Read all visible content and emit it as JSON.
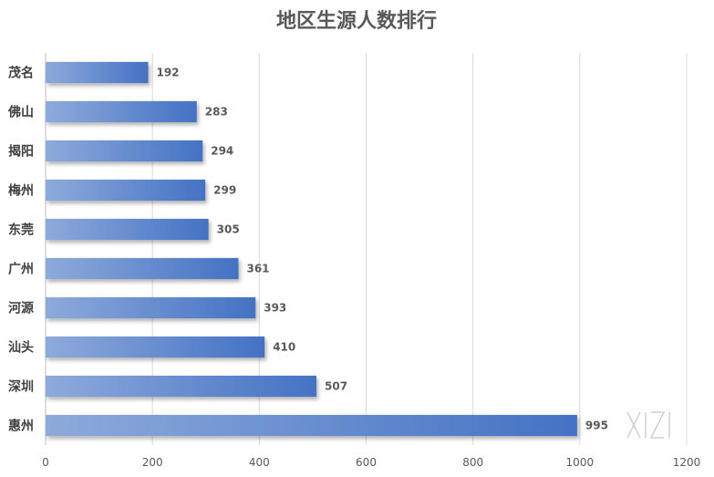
{
  "chart_data": {
    "type": "bar",
    "orientation": "horizontal",
    "title": "地区生源人数排行",
    "categories": [
      "茂名",
      "佛山",
      "揭阳",
      "梅州",
      "东莞",
      "广州",
      "河源",
      "汕头",
      "深圳",
      "惠州"
    ],
    "values": [
      192,
      283,
      294,
      299,
      305,
      361,
      393,
      410,
      507,
      995
    ],
    "data_labels": [
      "192",
      "283",
      "294",
      "299",
      "305",
      "361",
      "393",
      "410",
      "507",
      "995"
    ],
    "xlim": [
      0,
      1200
    ],
    "x_ticks": [
      0,
      200,
      400,
      600,
      800,
      1000,
      1200
    ],
    "x_tick_labels": [
      "0",
      "200",
      "400",
      "600",
      "800",
      "1000",
      "1200"
    ],
    "grid": "vertical",
    "legend": "none",
    "bar_color": "#4472c4",
    "bar_color_light": "#8eaadb"
  }
}
